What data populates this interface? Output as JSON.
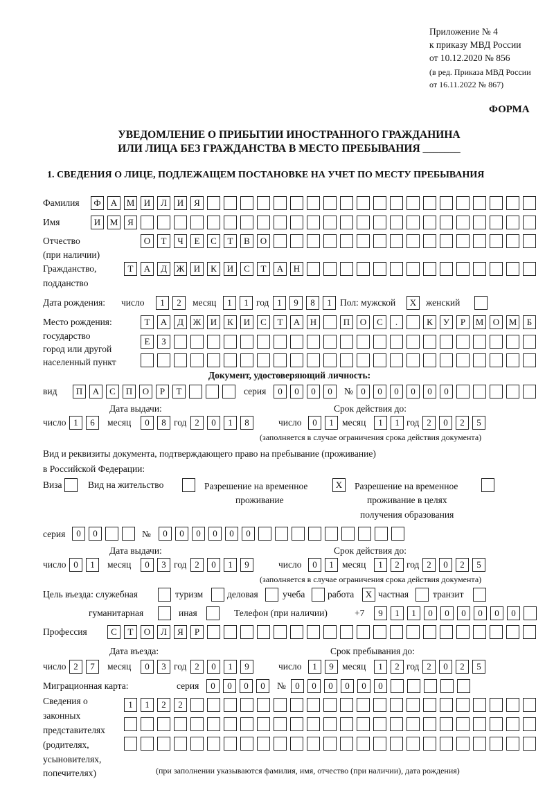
{
  "header": {
    "appendix_line1": "Приложение № 4",
    "appendix_line2": "к приказу МВД России",
    "appendix_line3": "от 10.12.2020 № 856",
    "amend_line1": "(в ред. Приказа МВД России",
    "amend_line2": "от 16.11.2022 № 867)",
    "form_label": "ФОРМА",
    "title_line1": "УВЕДОМЛЕНИЕ О ПРИБЫТИИ ИНОСТРАННОГО ГРАЖДАНИНА",
    "title_line2": "ИЛИ ЛИЦА БЕЗ ГРАЖДАНСТВА В МЕСТО ПРЕБЫВАНИЯ _______",
    "section1": "1. СВЕДЕНИЯ О ЛИЦЕ, ПОДЛЕЖАЩЕМ ПОСТАНОВКЕ НА УЧЕТ ПО МЕСТУ ПРЕБЫВАНИЯ"
  },
  "labels": {
    "surname": "Фамилия",
    "name": "Имя",
    "patronymic1": "Отчество",
    "patronymic2": "(при наличии)",
    "citizenship1": "Гражданство,",
    "citizenship2": "подданство",
    "birth_date": "Дата рождения:",
    "day": "число",
    "month": "месяц",
    "year": "год",
    "sex_male": "Пол: мужской",
    "sex_female": "женский",
    "birthplace1": "Место рождения:",
    "birthplace2": "государство",
    "birthplace3": "город или другой",
    "birthplace4": "населенный пункт",
    "id_doc": "Документ, удостоверяющий личность:",
    "kind": "вид",
    "series": "серия",
    "number": "№",
    "issue_date": "Дата выдачи:",
    "valid_until": "Срок действия до:",
    "valid_note": "(заполняется в случае ограничения срока действия документа)",
    "residence_doc1": "Вид и реквизиты документа, подтверждающего право на пребывание (проживание)",
    "residence_doc2": "в Российской Федерации:",
    "visa": "Виза",
    "residence_permit": "Вид на жительство",
    "temp_permit1": "Разрешение на временное",
    "temp_permit2": "проживание",
    "temp_edu1": "Разрешение на временное",
    "temp_edu2": "проживание в целях",
    "temp_edu3": "получения образования",
    "purpose": "Цель въезда: служебная",
    "tourism": "туризм",
    "business": "деловая",
    "study": "учеба",
    "work": "работа",
    "private": "частная",
    "transit": "транзит",
    "humanitarian": "гуманитарная",
    "other": "иная",
    "phone": "Телефон (при наличии)",
    "phone_prefix": "+7",
    "profession": "Профессия",
    "entry_date": "Дата въезда:",
    "stay_until": "Срок пребывания до:",
    "migration_card": "Миграционная карта:",
    "reps1": "Сведения о",
    "reps2": "законных",
    "reps3": "представителях",
    "reps4": "(родителях,",
    "reps5": "усыновителях,",
    "reps6": "попечителях)",
    "reps_note": "(при заполнении указываются фамилия, имя, отчество (при наличии), дата рождения)"
  },
  "fields": {
    "surname": [
      "Ф",
      "А",
      "М",
      "И",
      "Л",
      "И",
      "Я"
    ],
    "name": [
      "И",
      "М",
      "Я"
    ],
    "patronymic": [
      "О",
      "Т",
      "Ч",
      "Е",
      "С",
      "Т",
      "В",
      "О"
    ],
    "citizenship": [
      "Т",
      "А",
      "Д",
      "Ж",
      "И",
      "К",
      "И",
      "С",
      "Т",
      "А",
      "Н"
    ],
    "birth_day": [
      "1",
      "2"
    ],
    "birth_month": [
      "1",
      "1"
    ],
    "birth_year": [
      "1",
      "9",
      "8",
      "1"
    ],
    "sex_male": "X",
    "sex_female": "",
    "birthplace_row1": [
      "Т",
      "А",
      "Д",
      "Ж",
      "И",
      "К",
      "И",
      "С",
      "Т",
      "А",
      "Н",
      "",
      "П",
      "О",
      "С",
      ".",
      "",
      "К",
      "У",
      "Р",
      "М",
      "О",
      "М",
      "Б"
    ],
    "birthplace_row2": [
      "Е",
      "З"
    ],
    "birthplace_row3": [],
    "id_kind": [
      "П",
      "А",
      "С",
      "П",
      "О",
      "Р",
      "Т"
    ],
    "id_series": [
      "0",
      "0",
      "0",
      "0"
    ],
    "id_number": [
      "0",
      "0",
      "0",
      "0",
      "0",
      "0"
    ],
    "id_issue_day": [
      "1",
      "6"
    ],
    "id_issue_month": [
      "0",
      "8"
    ],
    "id_issue_year": [
      "2",
      "0",
      "1",
      "8"
    ],
    "id_valid_day": [
      "0",
      "1"
    ],
    "id_valid_month": [
      "1",
      "1"
    ],
    "id_valid_year": [
      "2",
      "0",
      "2",
      "5"
    ],
    "visa": "",
    "residence_permit": "",
    "temp_permit": "X",
    "temp_edu": "",
    "rd_series": [
      "0",
      "0"
    ],
    "rd_number": [
      "0",
      "0",
      "0",
      "0",
      "0",
      "0"
    ],
    "rd_issue_day": [
      "0",
      "1"
    ],
    "rd_issue_month": [
      "0",
      "3"
    ],
    "rd_issue_year": [
      "2",
      "0",
      "1",
      "9"
    ],
    "rd_valid_day": [
      "0",
      "1"
    ],
    "rd_valid_month": [
      "1",
      "2"
    ],
    "rd_valid_year": [
      "2",
      "0",
      "2",
      "5"
    ],
    "purpose_service": "",
    "purpose_tourism": "",
    "purpose_business": "",
    "purpose_study": "",
    "purpose_work": "X",
    "purpose_private": "",
    "purpose_transit": "",
    "purpose_humanitarian": "",
    "purpose_other": "",
    "phone": [
      "9",
      "1",
      "1",
      "0",
      "0",
      "0",
      "0",
      "0",
      "0"
    ],
    "profession": [
      "С",
      "Т",
      "О",
      "Л",
      "Я",
      "Р"
    ],
    "entry_day": [
      "2",
      "7"
    ],
    "entry_month": [
      "0",
      "3"
    ],
    "entry_year": [
      "2",
      "0",
      "1",
      "9"
    ],
    "stay_day": [
      "1",
      "9"
    ],
    "stay_month": [
      "1",
      "2"
    ],
    "stay_year": [
      "2",
      "0",
      "2",
      "5"
    ],
    "mc_series": [
      "0",
      "0",
      "0",
      "0"
    ],
    "mc_number": [
      "0",
      "0",
      "0",
      "0",
      "0",
      "0"
    ],
    "reps_row1": [
      "1",
      "1",
      "2",
      "2"
    ],
    "reps_row2": [],
    "reps_row3": []
  }
}
